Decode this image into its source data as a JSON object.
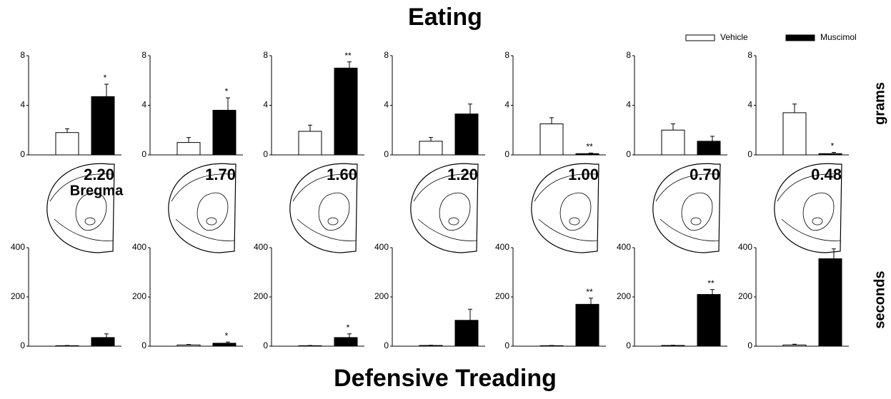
{
  "title": "Eating",
  "bottom_title": "Defensive Treading",
  "legend": [
    {
      "name": "Vehicle",
      "color": "#ffffff"
    },
    {
      "name": "Muscimol",
      "color": "#000000"
    }
  ],
  "ylabel_top": "grams",
  "ylabel_bottom": "seconds",
  "bregma_label": "Bregma",
  "sections": [
    "2.20",
    "1.70",
    "1.60",
    "1.20",
    "1.00",
    "0.70",
    "0.48"
  ],
  "chart_data": [
    {
      "type": "bar",
      "ylim": [
        0,
        8
      ],
      "yticks": [
        0,
        4,
        8
      ],
      "series": [
        {
          "color": "#ffffff",
          "values": [
            1.8
          ],
          "errors": [
            0.3
          ],
          "significance": [
            null
          ]
        },
        {
          "color": "#000000",
          "values": [
            4.7
          ],
          "errors": [
            1.0
          ],
          "significance": [
            "*"
          ]
        }
      ]
    },
    {
      "type": "bar",
      "ylim": [
        0,
        8
      ],
      "yticks": [
        0,
        4,
        8
      ],
      "series": [
        {
          "color": "#ffffff",
          "values": [
            1.0
          ],
          "errors": [
            0.4
          ],
          "significance": [
            null
          ]
        },
        {
          "color": "#000000",
          "values": [
            3.6
          ],
          "errors": [
            1.0
          ],
          "significance": [
            "*"
          ]
        }
      ]
    },
    {
      "type": "bar",
      "ylim": [
        0,
        8
      ],
      "yticks": [
        0,
        4,
        8
      ],
      "series": [
        {
          "color": "#ffffff",
          "values": [
            1.9
          ],
          "errors": [
            0.5
          ],
          "significance": [
            null
          ]
        },
        {
          "color": "#000000",
          "values": [
            7.0
          ],
          "errors": [
            0.5
          ],
          "significance": [
            "**"
          ]
        }
      ]
    },
    {
      "type": "bar",
      "ylim": [
        0,
        8
      ],
      "yticks": [
        0,
        4,
        8
      ],
      "series": [
        {
          "color": "#ffffff",
          "values": [
            1.1
          ],
          "errors": [
            0.3
          ],
          "significance": [
            null
          ]
        },
        {
          "color": "#000000",
          "values": [
            3.3
          ],
          "errors": [
            0.8
          ],
          "significance": [
            null
          ]
        }
      ]
    },
    {
      "type": "bar",
      "ylim": [
        0,
        8
      ],
      "yticks": [
        0,
        4,
        8
      ],
      "series": [
        {
          "color": "#ffffff",
          "values": [
            2.5
          ],
          "errors": [
            0.5
          ],
          "significance": [
            null
          ]
        },
        {
          "color": "#000000",
          "values": [
            0.1
          ],
          "errors": [
            0.05
          ],
          "significance": [
            "**"
          ]
        }
      ]
    },
    {
      "type": "bar",
      "ylim": [
        0,
        8
      ],
      "yticks": [
        0,
        4,
        8
      ],
      "series": [
        {
          "color": "#ffffff",
          "values": [
            2.0
          ],
          "errors": [
            0.5
          ],
          "significance": [
            null
          ]
        },
        {
          "color": "#000000",
          "values": [
            1.1
          ],
          "errors": [
            0.4
          ],
          "significance": [
            null
          ]
        }
      ]
    },
    {
      "type": "bar",
      "ylim": [
        0,
        8
      ],
      "yticks": [
        0,
        4,
        8
      ],
      "series": [
        {
          "color": "#ffffff",
          "values": [
            3.4
          ],
          "errors": [
            0.7
          ],
          "significance": [
            null
          ]
        },
        {
          "color": "#000000",
          "values": [
            0.1
          ],
          "errors": [
            0.1
          ],
          "significance": [
            "*"
          ]
        }
      ]
    },
    {
      "type": "bar",
      "ylim": [
        0,
        400
      ],
      "yticks": [
        0,
        200,
        400
      ],
      "series": [
        {
          "color": "#ffffff",
          "values": [
            2
          ],
          "errors": [
            1
          ],
          "significance": [
            null
          ]
        },
        {
          "color": "#000000",
          "values": [
            35
          ],
          "errors": [
            15
          ],
          "significance": [
            null
          ]
        }
      ]
    },
    {
      "type": "bar",
      "ylim": [
        0,
        400
      ],
      "yticks": [
        0,
        200,
        400
      ],
      "series": [
        {
          "color": "#ffffff",
          "values": [
            5
          ],
          "errors": [
            2
          ],
          "significance": [
            null
          ]
        },
        {
          "color": "#000000",
          "values": [
            12
          ],
          "errors": [
            5
          ],
          "significance": [
            "*"
          ]
        }
      ]
    },
    {
      "type": "bar",
      "ylim": [
        0,
        400
      ],
      "yticks": [
        0,
        200,
        400
      ],
      "series": [
        {
          "color": "#ffffff",
          "values": [
            2
          ],
          "errors": [
            1
          ],
          "significance": [
            null
          ]
        },
        {
          "color": "#000000",
          "values": [
            35
          ],
          "errors": [
            15
          ],
          "significance": [
            "*"
          ]
        }
      ]
    },
    {
      "type": "bar",
      "ylim": [
        0,
        400
      ],
      "yticks": [
        0,
        200,
        400
      ],
      "series": [
        {
          "color": "#ffffff",
          "values": [
            3
          ],
          "errors": [
            1
          ],
          "significance": [
            null
          ]
        },
        {
          "color": "#000000",
          "values": [
            105
          ],
          "errors": [
            45
          ],
          "significance": [
            null
          ]
        }
      ]
    },
    {
      "type": "bar",
      "ylim": [
        0,
        400
      ],
      "yticks": [
        0,
        200,
        400
      ],
      "series": [
        {
          "color": "#ffffff",
          "values": [
            2
          ],
          "errors": [
            1
          ],
          "significance": [
            null
          ]
        },
        {
          "color": "#000000",
          "values": [
            170
          ],
          "errors": [
            25
          ],
          "significance": [
            "**"
          ]
        }
      ]
    },
    {
      "type": "bar",
      "ylim": [
        0,
        400
      ],
      "yticks": [
        0,
        200,
        400
      ],
      "series": [
        {
          "color": "#ffffff",
          "values": [
            3
          ],
          "errors": [
            1
          ],
          "significance": [
            null
          ]
        },
        {
          "color": "#000000",
          "values": [
            210
          ],
          "errors": [
            20
          ],
          "significance": [
            "**"
          ]
        }
      ]
    },
    {
      "type": "bar",
      "ylim": [
        0,
        400
      ],
      "yticks": [
        0,
        200,
        400
      ],
      "series": [
        {
          "color": "#ffffff",
          "values": [
            5
          ],
          "errors": [
            3
          ],
          "significance": [
            null
          ]
        },
        {
          "color": "#000000",
          "values": [
            355
          ],
          "errors": [
            40
          ],
          "significance": [
            null
          ]
        }
      ]
    }
  ]
}
